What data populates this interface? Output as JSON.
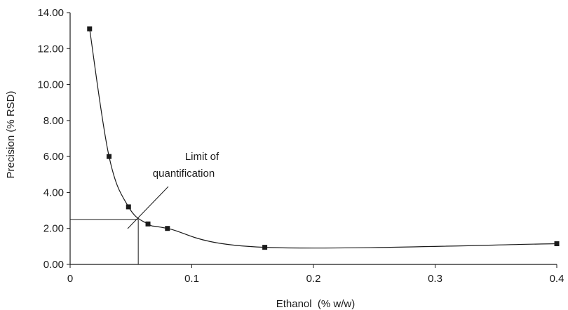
{
  "chart_data": {
    "type": "line",
    "title": "",
    "xlabel": "Ethanol  (% w/w)",
    "ylabel": "Precision (% RSD)",
    "xlim": [
      0,
      0.4
    ],
    "ylim": [
      0,
      14
    ],
    "x_ticks": [
      0,
      0.1,
      0.2,
      0.3,
      0.4
    ],
    "x_tick_labels": [
      "0",
      "0.1",
      "0.2",
      "0.3",
      "0.4"
    ],
    "y_ticks": [
      0,
      2,
      4,
      6,
      8,
      10,
      12,
      14
    ],
    "y_tick_labels": [
      "0.00",
      "2.00",
      "4.00",
      "6.00",
      "8.00",
      "10.00",
      "12.00",
      "14.00"
    ],
    "grid": false,
    "marker": "square",
    "line_style": "smooth",
    "color": "#1a1a1a",
    "series": [
      {
        "x": [
          0.016,
          0.032,
          0.048,
          0.064,
          0.08,
          0.16,
          0.4
        ],
        "y": [
          13.1,
          6.0,
          3.2,
          2.25,
          2.0,
          0.95,
          1.15
        ]
      }
    ],
    "annotations": [
      {
        "text_lines": [
          "Limit of",
          "quantification"
        ],
        "x": 0.056,
        "y": 2.5
      }
    ]
  }
}
